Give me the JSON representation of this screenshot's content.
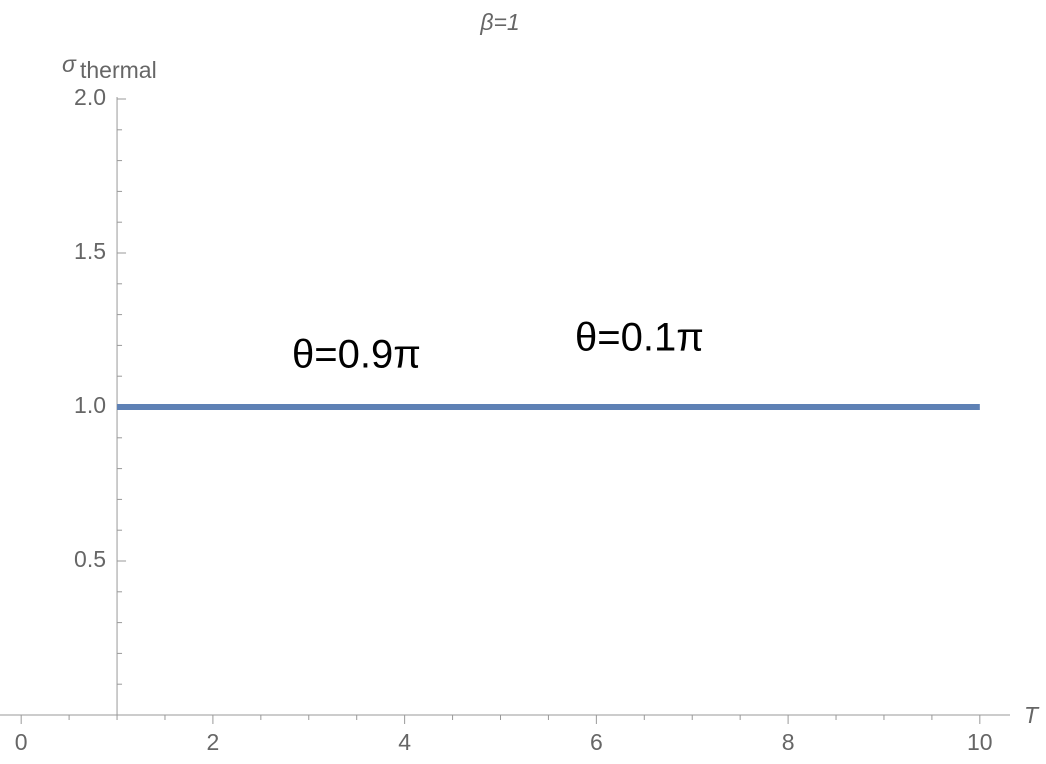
{
  "chart_data": {
    "type": "line",
    "title": "β=1",
    "ylabel_symbol": "σ",
    "ylabel_subscript": "thermal",
    "xlabel": "T",
    "x": [
      1,
      10
    ],
    "series": [
      {
        "name": "σthermal",
        "color": "#5e81b5",
        "values": [
          1,
          1
        ]
      }
    ],
    "annotations": [
      "θ=0.9π",
      "θ=0.1π"
    ],
    "xlim": [
      -0.2,
      10.2
    ],
    "ylim": [
      0,
      2
    ],
    "xticks": [
      0,
      2,
      4,
      6,
      8,
      10
    ],
    "yticks": [
      0.5,
      {
        "value": 1,
        "label": "1.0"
      },
      1.5,
      {
        "value": 2,
        "label": "2.0"
      }
    ],
    "xminorticks": [
      0.5,
      1,
      1.5,
      2.5,
      3,
      3.5,
      4.5,
      5,
      5.5,
      6.5,
      7,
      7.5,
      8.5,
      9,
      9.5
    ],
    "yminorticks": [
      0.1,
      0.2,
      0.3,
      0.4,
      0.6,
      0.7,
      0.8,
      0.9,
      1.1,
      1.2,
      1.3,
      1.4,
      1.6,
      1.7,
      1.8,
      1.9
    ],
    "grid": false
  }
}
